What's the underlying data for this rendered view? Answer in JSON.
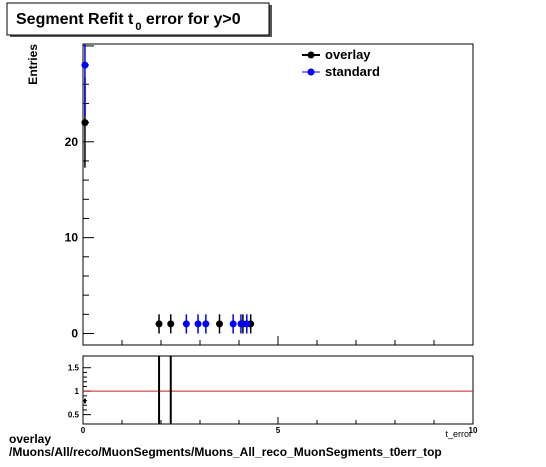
{
  "title": {
    "main": "Segment Refit t",
    "sub": "0",
    "rest": " error for y>0"
  },
  "ylabel": "Entries",
  "xlabel": "t_error",
  "footer": {
    "line1": "overlay",
    "line2": "/Muons/All/reco/MuonSegments/Muons_All_reco_MuonSegments_t0err_top"
  },
  "colors": {
    "overlay": "#000000",
    "standard": "#0000ff",
    "ratio_line": "#cc2222"
  },
  "chart_data": [
    {
      "type": "scatter",
      "title": "Segment Refit t0 error for y>0",
      "ylabel": "Entries",
      "xlim": [
        0,
        10
      ],
      "ylim": [
        -1.2,
        30.2
      ],
      "y_ticks": [
        0,
        10,
        20
      ],
      "y_tick_labels": [
        "0",
        "10",
        "20"
      ],
      "legend_position": "top-right",
      "series": [
        {
          "name": "overlay",
          "color": "#000000",
          "points": [
            {
              "x": 0.05,
              "y": 22,
              "err": 4.7
            },
            {
              "x": 1.95,
              "y": 1,
              "err": 1
            },
            {
              "x": 2.25,
              "y": 1,
              "err": 1
            },
            {
              "x": 3.5,
              "y": 1,
              "err": 1
            },
            {
              "x": 4.1,
              "y": 1,
              "err": 1
            },
            {
              "x": 4.3,
              "y": 1,
              "err": 1
            }
          ]
        },
        {
          "name": "standard",
          "color": "#0000ff",
          "points": [
            {
              "x": 0.05,
              "y": 28,
              "err": 5.3
            },
            {
              "x": 2.65,
              "y": 1,
              "err": 1
            },
            {
              "x": 2.95,
              "y": 1,
              "err": 1
            },
            {
              "x": 3.15,
              "y": 1,
              "err": 1
            },
            {
              "x": 3.85,
              "y": 1,
              "err": 1
            },
            {
              "x": 4.05,
              "y": 1,
              "err": 1
            },
            {
              "x": 4.2,
              "y": 1,
              "err": 1
            }
          ]
        }
      ]
    },
    {
      "type": "scatter",
      "title": "",
      "xlabel": "t_error",
      "xlim": [
        0,
        10
      ],
      "ylim": [
        0.3,
        1.75
      ],
      "x_ticks": [
        0,
        5,
        10
      ],
      "x_tick_labels": [
        "0",
        "5",
        "10"
      ],
      "y_ticks": [
        0.5,
        1,
        1.5
      ],
      "y_tick_labels": [
        "0.5",
        "1",
        "1.5"
      ],
      "reference_line": 1,
      "points": [
        {
          "x": 0.05,
          "y": 0.79,
          "err": 0.05
        },
        {
          "x": 1.95,
          "y": 1,
          "err": 1
        },
        {
          "x": 2.25,
          "y": 1,
          "err": 1
        }
      ]
    }
  ]
}
